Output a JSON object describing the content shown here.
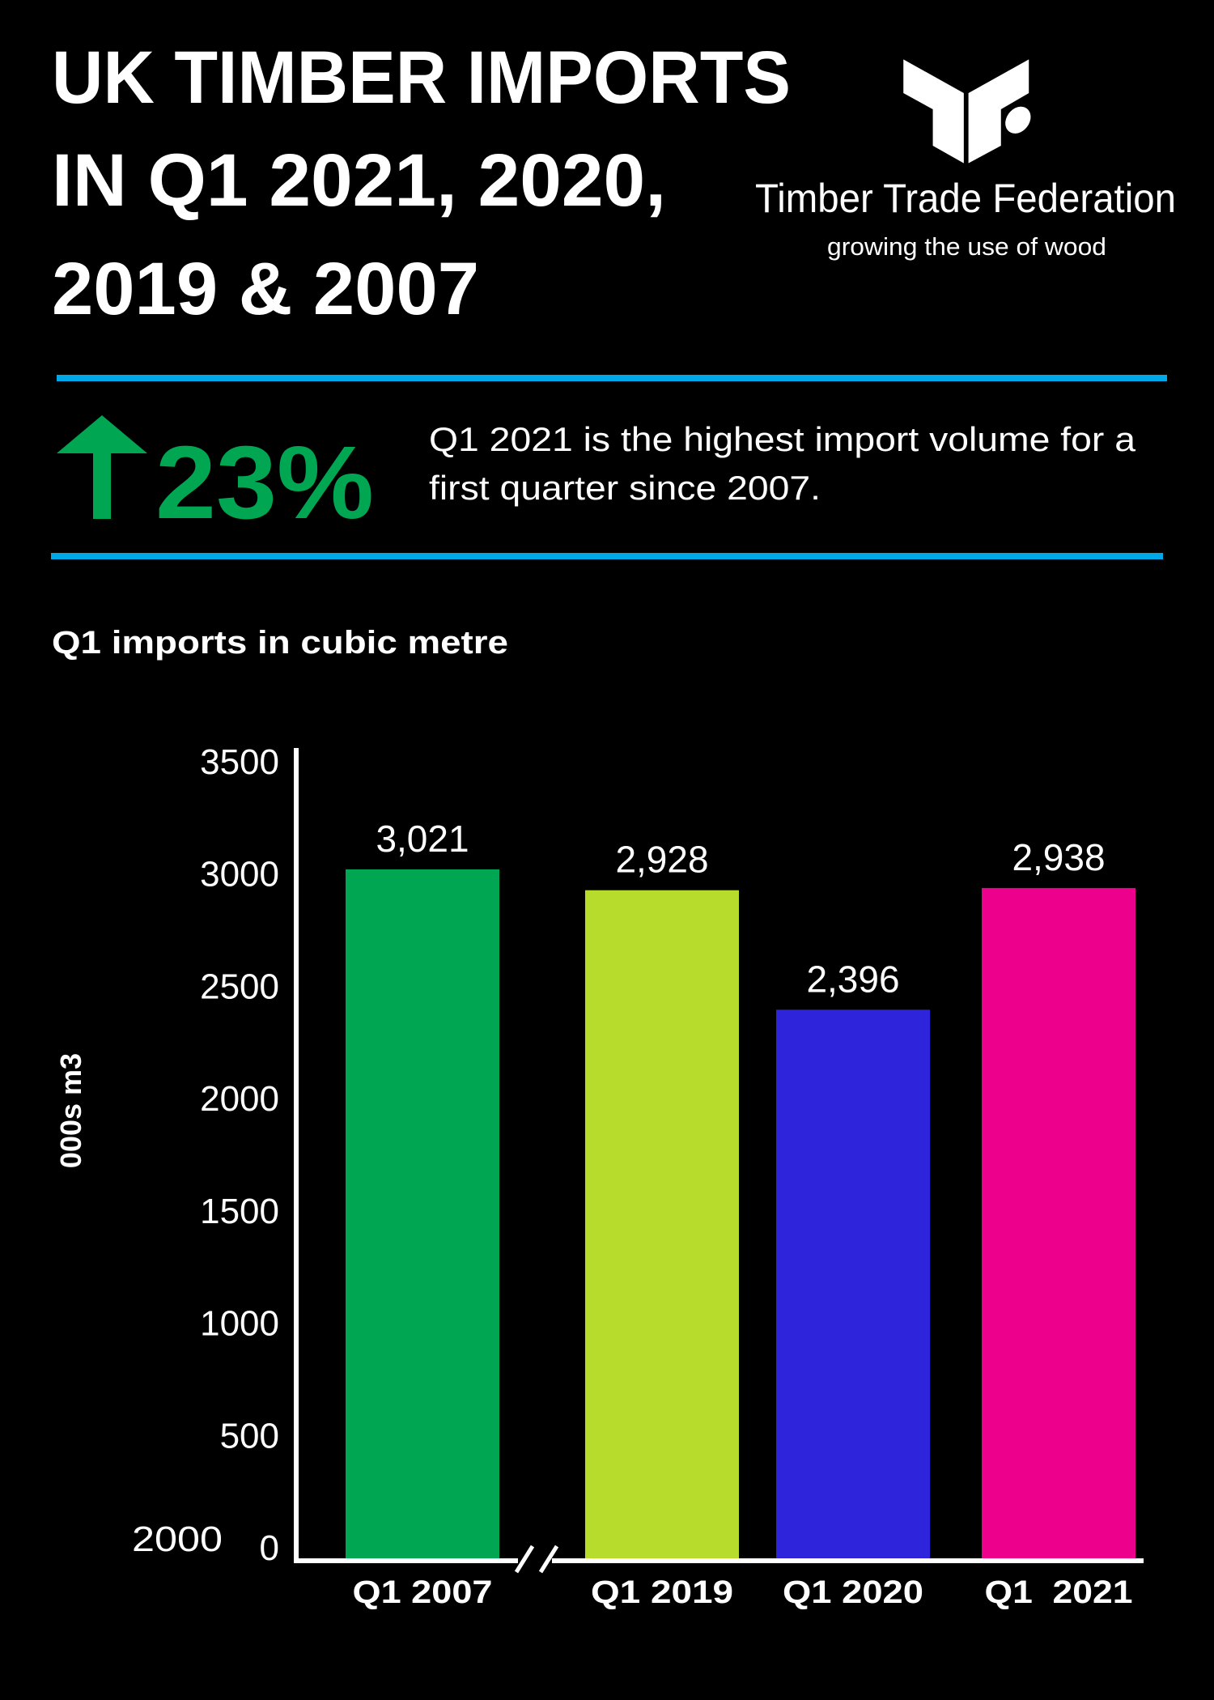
{
  "header": {
    "title_lines": [
      "UK TIMBER IMPORTS",
      "IN Q1 2021, 2020,",
      "2019 & 2007"
    ]
  },
  "logo": {
    "name": "Timber Trade Federation",
    "tagline": "growing the use of wood"
  },
  "highlight": {
    "icon": "arrow-up-icon",
    "value": "23%",
    "text_lines": [
      "Q1 2021 is the highest import volume for a",
      "first quarter since 2007."
    ]
  },
  "colors": {
    "background": "#000000",
    "divider": "#00a8e8",
    "accent_green": "#00a651"
  },
  "chart_data": {
    "type": "bar",
    "title": "Q1 imports in cubic metre",
    "ylabel": "000s m3",
    "xlabel": "",
    "ylim": [
      0,
      3500
    ],
    "yticks": [
      0,
      500,
      1000,
      1500,
      2000,
      2500,
      3000,
      3500
    ],
    "ytick_labels": [
      "0",
      "500",
      "1000",
      "1500",
      "2000",
      "2500",
      "3000",
      "3500"
    ],
    "stray_label": "2000",
    "axis_break": "between Q1 2007 and Q1 2019",
    "grid": false,
    "categories": [
      "Q1 2007",
      "Q1 2019",
      "Q1 2020",
      "Q1  2021"
    ],
    "values": [
      3021,
      2928,
      2396,
      2938
    ],
    "data_labels": [
      "3,021",
      "2,928",
      "2,396",
      "2,938"
    ],
    "bar_colors": [
      "#00a651",
      "#b8dc2c",
      "#2e24dc",
      "#ec008c"
    ]
  }
}
